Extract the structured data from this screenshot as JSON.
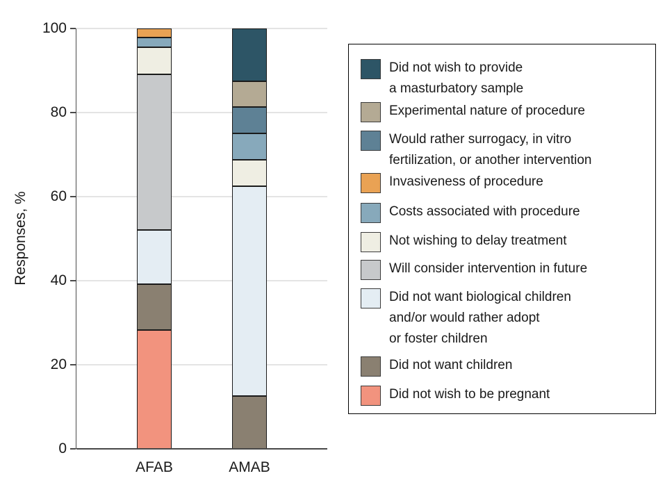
{
  "chart_data": {
    "type": "bar",
    "stacked": true,
    "title": "",
    "xlabel": "",
    "ylabel": "Responses, %",
    "ylim": [
      0,
      100
    ],
    "yticks": [
      0,
      20,
      40,
      60,
      80,
      100
    ],
    "grid": "horizontal",
    "legend_position": "right",
    "categories": [
      "AFAB",
      "AMAB"
    ],
    "series": [
      {
        "key": "pregnant",
        "name": "Did not wish to be pregnant",
        "legend_label": "Did not wish to be pregnant",
        "color": "#f2937e",
        "values": [
          28.2,
          0
        ]
      },
      {
        "key": "children",
        "name": "Did not want children",
        "legend_label": "Did not want children",
        "color": "#8a8071",
        "values": [
          10.9,
          12.5
        ]
      },
      {
        "key": "bio-children",
        "name": "Did not want biological children and/or would rather adopt or foster children",
        "legend_label": "Did not want biological children\nand/or would rather adopt\nor foster children",
        "color": "#e4edf3",
        "values": [
          13.0,
          50.0
        ]
      },
      {
        "key": "future",
        "name": "Will consider intervention in future",
        "legend_label": "Will consider intervention in future",
        "color": "#c7c9cb",
        "values": [
          37.0,
          0
        ]
      },
      {
        "key": "delay",
        "name": "Not wishing to delay treatment",
        "legend_label": "Not wishing to delay treatment",
        "color": "#efeee3",
        "values": [
          6.5,
          6.25
        ]
      },
      {
        "key": "costs",
        "name": "Costs associated with procedure",
        "legend_label": "Costs associated with procedure",
        "color": "#87a9bb",
        "values": [
          2.2,
          6.25
        ]
      },
      {
        "key": "invasiveness",
        "name": "Invasiveness of procedure",
        "legend_label": "Invasiveness of procedure",
        "color": "#e9a254",
        "values": [
          2.2,
          0
        ]
      },
      {
        "key": "surrogacy",
        "name": "Would rather surrogacy, in vitro fertilization, or another intervention",
        "legend_label": "Would rather surrogacy, in vitro\nfertilization, or another intervention",
        "color": "#5e8195",
        "values": [
          0,
          6.25
        ]
      },
      {
        "key": "experimental",
        "name": "Experimental nature of procedure",
        "legend_label": "Experimental nature of procedure",
        "color": "#b4aa94",
        "values": [
          0,
          6.25
        ]
      },
      {
        "key": "masturbatory",
        "name": "Did not wish to provide a masturbatory sample",
        "legend_label": "Did not wish to provide\na masturbatory sample",
        "color": "#2d5566",
        "values": [
          0,
          12.5
        ]
      }
    ]
  }
}
